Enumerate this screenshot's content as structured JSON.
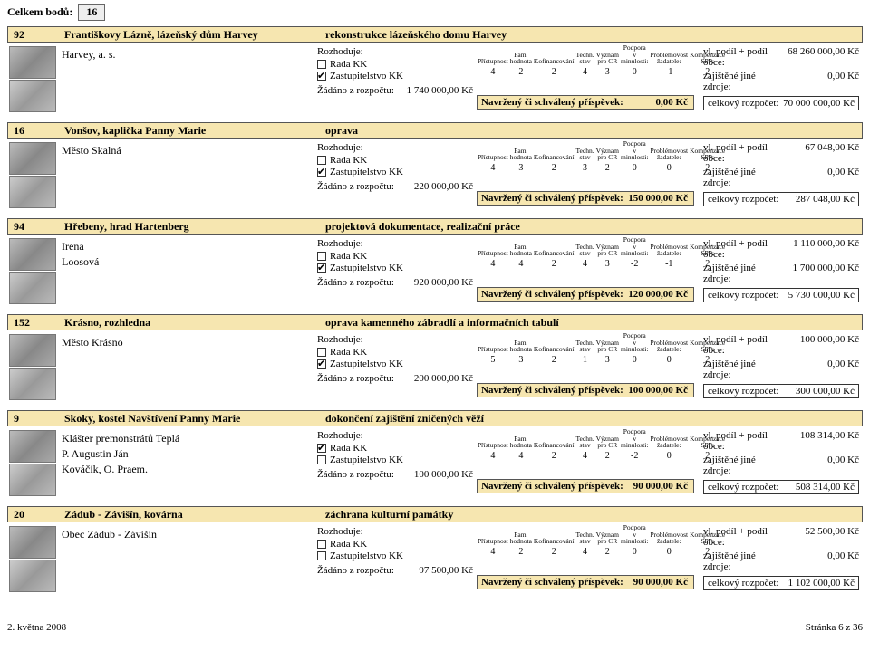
{
  "colors": {
    "highlight": "#f6e6b0",
    "background": "#ffffff",
    "text": "#000000",
    "border": "#555555"
  },
  "header": {
    "label": "Celkem bodů:",
    "value": "16"
  },
  "scores_headers": [
    "Přístupnost",
    "Pam. hodnota",
    "Kofinancování",
    "Techn. stav",
    "Význam pro CR",
    "Podpora v minulosti:",
    "Problémovost žadatele:",
    "Kompenzace SPP:"
  ],
  "navrz_label": "Navržený či schválený příspěvek:",
  "right_labels": {
    "vl_podil": "vl. podíl + podíl obce:",
    "zajistene": "zajištěné jiné zdroje:",
    "celkovy": "celkový rozpočet:"
  },
  "mid_labels": {
    "rozhoduje": "Rozhoduje:",
    "rada": "Rada KK",
    "zast": "Zastupitelstvo KK",
    "zadano": "Žádáno z rozpočtu:"
  },
  "entries": [
    {
      "id": "92",
      "name": "Františkovy Lázně, lázeňský dům Harvey",
      "desc": "rekonstrukce lázeňského domu Harvey",
      "applicant_lines": [
        "Harvey, a. s."
      ],
      "rada_checked": false,
      "zast_checked": true,
      "zadano": "1 740 000,00 Kč",
      "scores": [
        "4",
        "2",
        "2",
        "4",
        "3",
        "0",
        "-1",
        "2"
      ],
      "navrz": "0,00 Kč",
      "right": {
        "vl_podil": "68 260 000,00 Kč",
        "zajistene": "0,00 Kč",
        "celkovy": "70 000 000,00 Kč"
      }
    },
    {
      "id": "16",
      "name": "Vonšov, kaplička Panny Marie",
      "desc": "oprava",
      "applicant_lines": [
        "Město Skalná"
      ],
      "rada_checked": false,
      "zast_checked": true,
      "zadano": "220 000,00 Kč",
      "scores": [
        "4",
        "3",
        "2",
        "3",
        "2",
        "0",
        "0",
        "2"
      ],
      "navrz": "150 000,00 Kč",
      "right": {
        "vl_podil": "67 048,00 Kč",
        "zajistene": "0,00 Kč",
        "celkovy": "287 048,00 Kč"
      }
    },
    {
      "id": "94",
      "name": "Hřebeny, hrad Hartenberg",
      "desc": "projektová dokumentace, realizační práce",
      "applicant_lines": [
        "Irena",
        "Loosová"
      ],
      "rada_checked": false,
      "zast_checked": true,
      "zadano": "920 000,00 Kč",
      "scores": [
        "4",
        "4",
        "2",
        "4",
        "3",
        "-2",
        "-1",
        "2"
      ],
      "navrz": "120 000,00 Kč",
      "right": {
        "vl_podil": "1 110 000,00 Kč",
        "zajistene": "1 700 000,00 Kč",
        "celkovy": "5 730 000,00 Kč"
      }
    },
    {
      "id": "152",
      "name": "Krásno, rozhledna",
      "desc": "oprava kamenného zábradlí a informačních tabulí",
      "applicant_lines": [
        "Město Krásno"
      ],
      "rada_checked": false,
      "zast_checked": true,
      "zadano": "200 000,00 Kč",
      "scores": [
        "5",
        "3",
        "2",
        "1",
        "3",
        "0",
        "0",
        "2"
      ],
      "navrz": "100 000,00 Kč",
      "right": {
        "vl_podil": "100 000,00 Kč",
        "zajistene": "0,00 Kč",
        "celkovy": "300 000,00 Kč"
      }
    },
    {
      "id": "9",
      "name": "Skoky, kostel Navštívení Panny Marie",
      "desc": "dokončení zajištění zničených věží",
      "applicant_lines": [
        "Klášter premonstrátů Teplá",
        "",
        "P. Augustin Ján",
        "Kováčik, O. Praem."
      ],
      "rada_checked": true,
      "zast_checked": false,
      "zadano": "100 000,00 Kč",
      "scores": [
        "4",
        "4",
        "2",
        "4",
        "2",
        "-2",
        "0",
        "2"
      ],
      "navrz": "90 000,00 Kč",
      "right": {
        "vl_podil": "108 314,00 Kč",
        "zajistene": "0,00 Kč",
        "celkovy": "508 314,00 Kč"
      }
    },
    {
      "id": "20",
      "name": "Zádub - Závišín, kovárna",
      "desc": "záchrana kulturní památky",
      "applicant_lines": [
        "Obec Zádub - Závišin"
      ],
      "rada_checked": false,
      "zast_checked": false,
      "zadano": "97 500,00 Kč",
      "scores": [
        "4",
        "2",
        "2",
        "4",
        "2",
        "0",
        "0",
        "2"
      ],
      "navrz": "90 000,00 Kč",
      "right": {
        "vl_podil": "52 500,00 Kč",
        "zajistene": "0,00 Kč",
        "celkovy": "1 102 000,00 Kč"
      }
    }
  ],
  "footer": {
    "date": "2. května 2008",
    "page": "Stránka 6 z 36"
  }
}
